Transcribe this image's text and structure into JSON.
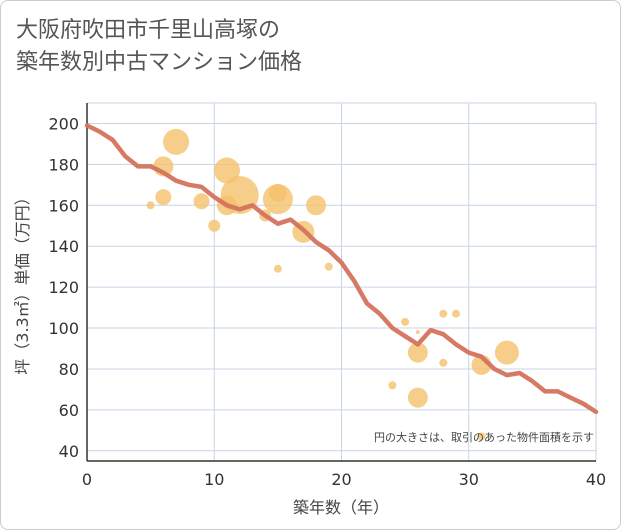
{
  "title_line1": "大阪府吹田市千里山高塚の",
  "title_line2": "築年数別中古マンション価格",
  "chart_data": {
    "type": "scatter",
    "title": "大阪府吹田市千里山高塚の築年数別中古マンション価格",
    "xlabel": "築年数（年）",
    "ylabel": "坪（3.3㎡）単価（万円）",
    "xlim": [
      0,
      40
    ],
    "ylim": [
      35,
      210
    ],
    "xticks": [
      0,
      10,
      20,
      30,
      40
    ],
    "yticks": [
      40,
      60,
      80,
      100,
      120,
      140,
      160,
      180,
      200
    ],
    "grid": true,
    "note": "円の大きさは、取引のあった物件面積を示す",
    "colors": {
      "bubble": "#f5c26b",
      "line": "#d4735e",
      "grid": "#c8d3e6"
    },
    "bubbles": [
      {
        "x": 5,
        "y": 160,
        "size": 4
      },
      {
        "x": 6,
        "y": 179,
        "size": 10
      },
      {
        "x": 6,
        "y": 164,
        "size": 8
      },
      {
        "x": 7,
        "y": 191,
        "size": 13
      },
      {
        "x": 9,
        "y": 162,
        "size": 8
      },
      {
        "x": 10,
        "y": 150,
        "size": 6
      },
      {
        "x": 11,
        "y": 177,
        "size": 13
      },
      {
        "x": 11,
        "y": 160,
        "size": 10
      },
      {
        "x": 12,
        "y": 165,
        "size": 19
      },
      {
        "x": 14,
        "y": 155,
        "size": 6
      },
      {
        "x": 15,
        "y": 166,
        "size": 9
      },
      {
        "x": 15,
        "y": 163,
        "size": 15
      },
      {
        "x": 15,
        "y": 129,
        "size": 4
      },
      {
        "x": 17,
        "y": 147,
        "size": 11
      },
      {
        "x": 18,
        "y": 160,
        "size": 10
      },
      {
        "x": 19,
        "y": 130,
        "size": 4
      },
      {
        "x": 24,
        "y": 72,
        "size": 4
      },
      {
        "x": 25,
        "y": 103,
        "size": 4
      },
      {
        "x": 26,
        "y": 98,
        "size": 2
      },
      {
        "x": 26,
        "y": 88,
        "size": 10
      },
      {
        "x": 26,
        "y": 66,
        "size": 10
      },
      {
        "x": 28,
        "y": 107,
        "size": 4
      },
      {
        "x": 28,
        "y": 83,
        "size": 4
      },
      {
        "x": 29,
        "y": 107,
        "size": 4
      },
      {
        "x": 31,
        "y": 82,
        "size": 10
      },
      {
        "x": 31,
        "y": 47,
        "size": 4
      },
      {
        "x": 33,
        "y": 88,
        "size": 12
      }
    ],
    "trend": {
      "x": [
        0,
        1,
        2,
        3,
        4,
        5,
        6,
        7,
        8,
        9,
        10,
        11,
        12,
        13,
        14,
        15,
        16,
        17,
        18,
        19,
        20,
        21,
        22,
        23,
        24,
        25,
        26,
        27,
        28,
        29,
        30,
        31,
        32,
        33,
        34,
        35,
        36,
        37,
        38,
        39,
        40
      ],
      "y": [
        199,
        196,
        192,
        184,
        179,
        179,
        176,
        172,
        170,
        169,
        164,
        160,
        158,
        160,
        155,
        151,
        153,
        148,
        142,
        138,
        132,
        123,
        112,
        107,
        100,
        96,
        92,
        99,
        97,
        92,
        88,
        86,
        80,
        77,
        78,
        74,
        69,
        69,
        66,
        63,
        59
      ]
    }
  }
}
